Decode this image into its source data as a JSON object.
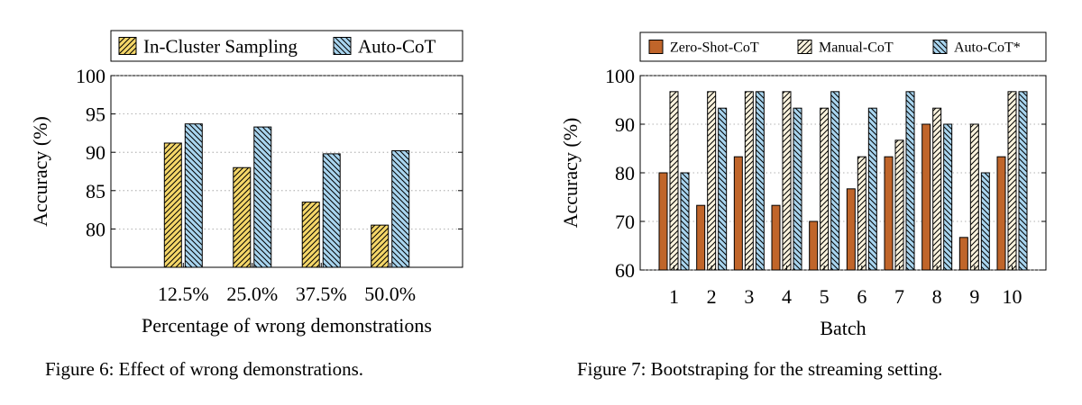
{
  "chart_data": [
    {
      "type": "bar",
      "caption": "Figure 6:  Effect of wrong demonstrations.",
      "title": "",
      "xlabel": "Percentage of wrong demonstrations",
      "ylabel": "Accuracy (%)",
      "categories": [
        "12.5%",
        "25.0%",
        "37.5%",
        "50.0%"
      ],
      "ylim": [
        75,
        100
      ],
      "yticks": [
        "80",
        "85",
        "90",
        "95",
        "100"
      ],
      "grid": true,
      "legend_position": "top",
      "series": [
        {
          "name": "In-Cluster Sampling",
          "values": [
            91.2,
            88.0,
            83.5,
            80.5
          ],
          "color": "#f5d769",
          "pattern": "north-east-lines"
        },
        {
          "name": "Auto-CoT",
          "values": [
            93.7,
            93.3,
            89.8,
            90.2
          ],
          "color": "#a9d5ef",
          "pattern": "north-west-lines"
        }
      ]
    },
    {
      "type": "bar",
      "caption": "Figure 7: Bootstraping for the streaming setting.",
      "title": "",
      "xlabel": "Batch",
      "ylabel": "Accuracy (%)",
      "categories": [
        "1",
        "2",
        "3",
        "4",
        "5",
        "6",
        "7",
        "8",
        "9",
        "10"
      ],
      "ylim": [
        60,
        100
      ],
      "yticks": [
        "60",
        "70",
        "80",
        "90",
        "100"
      ],
      "grid": true,
      "legend_position": "top",
      "series": [
        {
          "name": "Zero-Shot-CoT",
          "values": [
            80,
            73.3,
            83.3,
            73.3,
            70,
            76.7,
            83.3,
            90,
            66.7,
            83.3
          ],
          "color": "#c0652a",
          "pattern": "solid"
        },
        {
          "name": "Manual-CoT",
          "values": [
            96.7,
            96.7,
            96.7,
            96.7,
            93.3,
            83.3,
            86.7,
            93.3,
            90,
            96.7
          ],
          "color": "#fbf3dd",
          "pattern": "north-east-lines"
        },
        {
          "name": "Auto-CoT*",
          "values": [
            80,
            93.3,
            96.7,
            93.3,
            96.7,
            93.3,
            96.7,
            90,
            80,
            96.7
          ],
          "color": "#a9d5ef",
          "pattern": "north-west-lines"
        }
      ]
    }
  ]
}
